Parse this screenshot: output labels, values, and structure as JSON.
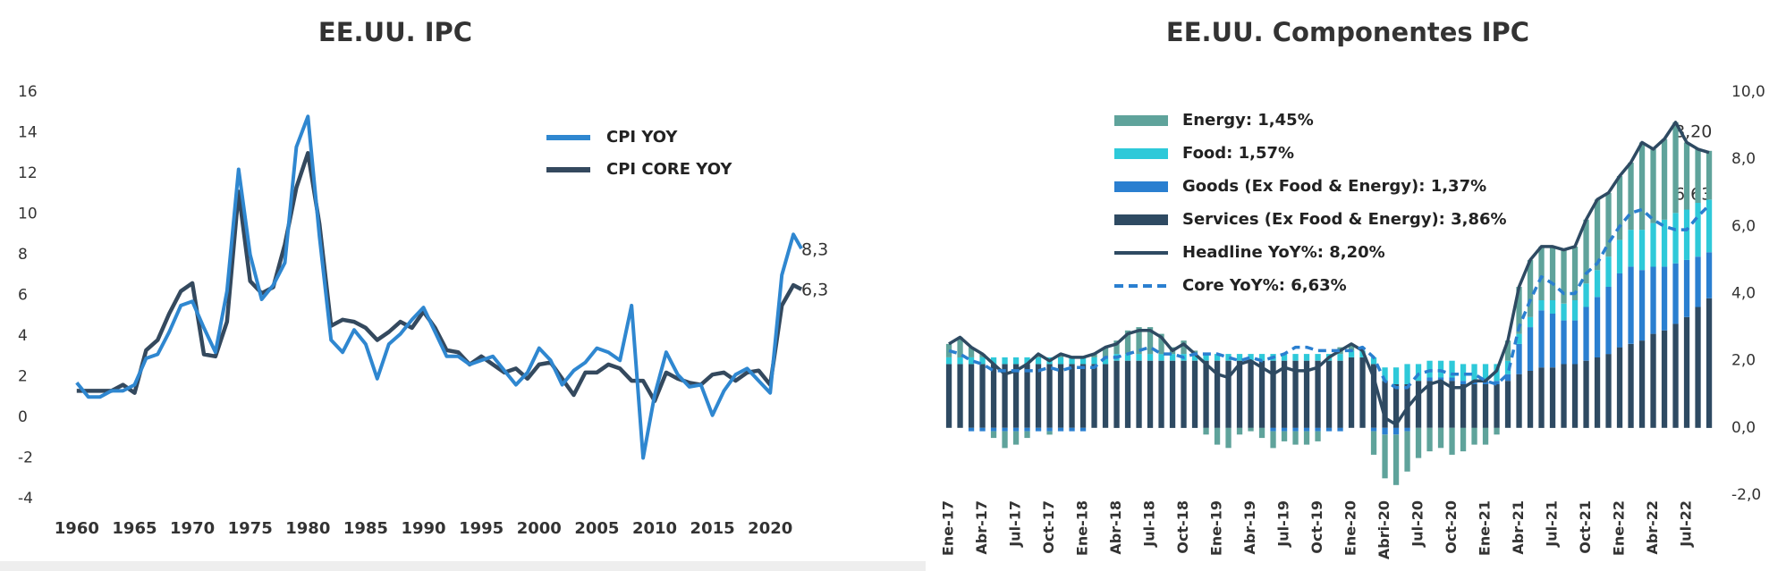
{
  "chart_data": [
    {
      "type": "line",
      "title": "EE.UU. IPC",
      "x": [
        1960,
        1961,
        1962,
        1963,
        1964,
        1965,
        1966,
        1967,
        1968,
        1969,
        1970,
        1971,
        1972,
        1973,
        1974,
        1975,
        1976,
        1977,
        1978,
        1979,
        1980,
        1981,
        1982,
        1983,
        1984,
        1985,
        1986,
        1987,
        1988,
        1989,
        1990,
        1991,
        1992,
        1993,
        1994,
        1995,
        1996,
        1997,
        1998,
        1999,
        2000,
        2001,
        2002,
        2003,
        2004,
        2005,
        2006,
        2007,
        2008,
        2009,
        2010,
        2011,
        2012,
        2013,
        2014,
        2015,
        2016,
        2017,
        2018,
        2019,
        2020,
        2021,
        2022,
        2022.7
      ],
      "series": [
        {
          "name": "CPI YOY",
          "color": "#2f87d0",
          "values": [
            1.7,
            1.0,
            1.0,
            1.3,
            1.3,
            1.6,
            2.9,
            3.1,
            4.2,
            5.5,
            5.7,
            4.4,
            3.2,
            6.2,
            12.2,
            8.0,
            5.8,
            6.5,
            7.6,
            13.3,
            14.8,
            8.9,
            3.8,
            3.2,
            4.3,
            3.6,
            1.9,
            3.6,
            4.1,
            4.8,
            5.4,
            4.2,
            3.0,
            3.0,
            2.6,
            2.8,
            3.0,
            2.3,
            1.6,
            2.2,
            3.4,
            2.8,
            1.6,
            2.3,
            2.7,
            3.4,
            3.2,
            2.8,
            5.5,
            -2.0,
            1.1,
            3.2,
            2.1,
            1.5,
            1.6,
            0.1,
            1.3,
            2.1,
            2.4,
            1.8,
            1.2,
            7.0,
            9.0,
            8.3
          ]
        },
        {
          "name": "CPI CORE YOY",
          "color": "#34495e",
          "values": [
            1.3,
            1.3,
            1.3,
            1.3,
            1.6,
            1.2,
            3.3,
            3.8,
            5.1,
            6.2,
            6.6,
            3.1,
            3.0,
            4.7,
            11.1,
            6.7,
            6.1,
            6.4,
            8.5,
            11.3,
            13.0,
            9.5,
            4.5,
            4.8,
            4.7,
            4.4,
            3.8,
            4.2,
            4.7,
            4.4,
            5.2,
            4.4,
            3.3,
            3.2,
            2.6,
            3.0,
            2.6,
            2.2,
            2.4,
            1.9,
            2.6,
            2.7,
            1.9,
            1.1,
            2.2,
            2.2,
            2.6,
            2.4,
            1.8,
            1.8,
            0.8,
            2.2,
            1.9,
            1.7,
            1.6,
            2.1,
            2.2,
            1.8,
            2.2,
            2.3,
            1.6,
            5.5,
            6.5,
            6.3
          ]
        }
      ],
      "xlim": [
        1958,
        2023
      ],
      "xticks": [
        1960,
        1965,
        1970,
        1975,
        1980,
        1985,
        1990,
        1995,
        2000,
        2005,
        2010,
        2015,
        2020
      ],
      "ylim": [
        -4,
        16
      ],
      "yticks": [
        -4,
        -2,
        0,
        2,
        4,
        6,
        8,
        10,
        12,
        14,
        16
      ],
      "annotations": [
        "8,3",
        "6,3"
      ]
    },
    {
      "type": "stacked_bar",
      "title": "EE.UU. Componentes IPC",
      "categories": [
        "Ene-17",
        null,
        null,
        "Abr-17",
        null,
        null,
        "Jul-17",
        null,
        null,
        "Oct-17",
        null,
        null,
        "Ene-18",
        null,
        null,
        "Abr-18",
        null,
        null,
        "Jul-18",
        null,
        null,
        "Oct-18",
        null,
        null,
        "Ene-19",
        null,
        null,
        "Abr-19",
        null,
        null,
        "Jul-19",
        null,
        null,
        "Oct-19",
        null,
        null,
        "Ene-20",
        null,
        null,
        "Abri-20",
        null,
        null,
        "Jul-20",
        null,
        null,
        "Oct-20",
        null,
        null,
        "Ene-21",
        null,
        null,
        "Abr-21",
        null,
        null,
        "Jul-21",
        null,
        null,
        "Oct-21",
        null,
        null,
        "Ene-22",
        null,
        null,
        "Abr-22",
        null,
        null,
        "Jul-22",
        null,
        null
      ],
      "series": [
        {
          "name": "Energy: 1,45%",
          "color": "#5fa39b",
          "values": [
            0.4,
            0.6,
            0.3,
            0.1,
            -0.2,
            -0.5,
            -0.4,
            -0.2,
            0.1,
            -0.1,
            0.1,
            0.0,
            0.0,
            0.1,
            0.3,
            0.4,
            0.7,
            0.8,
            0.8,
            0.6,
            0.2,
            0.4,
            0.1,
            -0.2,
            -0.5,
            -0.6,
            -0.2,
            -0.1,
            -0.3,
            -0.5,
            -0.3,
            -0.4,
            -0.4,
            -0.3,
            0.0,
            0.2,
            0.2,
            0.0,
            -0.7,
            -1.3,
            -1.5,
            -1.2,
            -0.9,
            -0.7,
            -0.6,
            -0.8,
            -0.7,
            -0.5,
            -0.5,
            -0.2,
            0.6,
            1.4,
            1.7,
            1.6,
            1.6,
            1.6,
            1.6,
            1.9,
            2.1,
            1.9,
            1.9,
            2.0,
            2.6,
            2.2,
            2.4,
            2.7,
            2.0,
            1.6,
            1.45
          ]
        },
        {
          "name": "Food: 1,57%",
          "color": "#2ec9d9",
          "values": [
            0.2,
            0.2,
            0.2,
            0.2,
            0.2,
            0.2,
            0.2,
            0.2,
            0.2,
            0.2,
            0.2,
            0.2,
            0.2,
            0.2,
            0.2,
            0.2,
            0.2,
            0.2,
            0.2,
            0.2,
            0.2,
            0.2,
            0.2,
            0.2,
            0.2,
            0.2,
            0.2,
            0.2,
            0.2,
            0.2,
            0.2,
            0.2,
            0.2,
            0.2,
            0.2,
            0.2,
            0.2,
            0.2,
            0.2,
            0.4,
            0.5,
            0.6,
            0.5,
            0.5,
            0.5,
            0.5,
            0.5,
            0.5,
            0.5,
            0.5,
            0.4,
            0.3,
            0.3,
            0.3,
            0.4,
            0.5,
            0.6,
            0.7,
            0.8,
            0.9,
            1.0,
            1.1,
            1.2,
            1.3,
            1.4,
            1.5,
            1.5,
            1.6,
            1.57
          ]
        },
        {
          "name": "Goods (Ex Food & Energy): 1,37%",
          "color": "#2a7fd0",
          "values": [
            0.0,
            0.0,
            -0.1,
            -0.1,
            -0.1,
            -0.1,
            -0.1,
            -0.1,
            -0.1,
            -0.1,
            -0.1,
            -0.1,
            -0.1,
            0.0,
            0.0,
            0.0,
            0.0,
            0.0,
            0.0,
            0.0,
            0.0,
            0.0,
            0.0,
            0.0,
            0.0,
            0.0,
            0.0,
            0.0,
            0.0,
            -0.1,
            -0.1,
            -0.1,
            -0.1,
            -0.1,
            -0.1,
            -0.1,
            0.0,
            0.0,
            -0.1,
            -0.2,
            -0.2,
            -0.1,
            0.0,
            0.1,
            0.1,
            0.1,
            0.1,
            0.1,
            0.1,
            0.1,
            0.2,
            0.9,
            1.3,
            1.7,
            1.6,
            1.3,
            1.3,
            1.6,
            1.8,
            2.0,
            2.2,
            2.3,
            2.1,
            2.0,
            1.9,
            1.8,
            1.7,
            1.5,
            1.37
          ]
        },
        {
          "name": "Services (Ex Food & Energy): 3,86%",
          "color": "#2e4a62",
          "values": [
            1.9,
            1.9,
            1.9,
            1.9,
            1.9,
            1.9,
            1.9,
            1.9,
            1.9,
            1.9,
            1.9,
            1.9,
            1.9,
            1.9,
            1.9,
            2.0,
            2.0,
            2.0,
            2.0,
            2.0,
            2.0,
            2.0,
            2.0,
            2.0,
            2.0,
            2.0,
            2.0,
            2.0,
            2.0,
            2.0,
            2.0,
            2.0,
            2.0,
            2.0,
            2.0,
            2.0,
            2.1,
            2.1,
            1.9,
            1.4,
            1.3,
            1.3,
            1.4,
            1.4,
            1.4,
            1.4,
            1.3,
            1.3,
            1.3,
            1.3,
            1.4,
            1.6,
            1.7,
            1.8,
            1.8,
            1.9,
            1.9,
            2.0,
            2.1,
            2.2,
            2.4,
            2.5,
            2.6,
            2.8,
            2.9,
            3.1,
            3.3,
            3.6,
            3.86
          ]
        },
        {
          "name": "Headline YoY%: 8,20%",
          "color": "#2e4a62",
          "type": "line",
          "values": [
            2.5,
            2.7,
            2.4,
            2.2,
            1.9,
            1.6,
            1.7,
            1.9,
            2.2,
            2.0,
            2.2,
            2.1,
            2.1,
            2.2,
            2.4,
            2.5,
            2.8,
            2.9,
            2.9,
            2.7,
            2.3,
            2.5,
            2.2,
            1.9,
            1.6,
            1.5,
            1.9,
            2.0,
            1.8,
            1.6,
            1.8,
            1.7,
            1.7,
            1.8,
            2.1,
            2.3,
            2.5,
            2.3,
            1.5,
            0.3,
            0.1,
            0.6,
            1.0,
            1.3,
            1.4,
            1.2,
            1.2,
            1.4,
            1.4,
            1.7,
            2.6,
            4.2,
            5.0,
            5.4,
            5.4,
            5.3,
            5.4,
            6.2,
            6.8,
            7.0,
            7.5,
            7.9,
            8.5,
            8.3,
            8.6,
            9.1,
            8.5,
            8.3,
            8.2
          ]
        },
        {
          "name": "Core YoY%: 6,63%",
          "color": "#2a7fd0",
          "type": "line",
          "dashed": true,
          "values": [
            2.3,
            2.2,
            2.0,
            1.9,
            1.7,
            1.7,
            1.7,
            1.7,
            1.7,
            1.8,
            1.7,
            1.8,
            1.8,
            1.8,
            2.1,
            2.1,
            2.2,
            2.3,
            2.4,
            2.2,
            2.2,
            2.1,
            2.2,
            2.2,
            2.2,
            2.1,
            2.0,
            2.1,
            2.0,
            2.1,
            2.2,
            2.4,
            2.4,
            2.3,
            2.3,
            2.3,
            2.3,
            2.4,
            2.1,
            1.4,
            1.2,
            1.2,
            1.6,
            1.7,
            1.7,
            1.6,
            1.6,
            1.6,
            1.4,
            1.3,
            1.6,
            3.0,
            3.8,
            4.5,
            4.3,
            4.0,
            4.0,
            4.6,
            4.9,
            5.5,
            6.0,
            6.4,
            6.5,
            6.2,
            6.0,
            5.9,
            5.9,
            6.3,
            6.63
          ]
        }
      ],
      "ylim": [
        -2,
        10
      ],
      "yticks": [
        {
          "value": -2,
          "label": "-2,0"
        },
        {
          "value": 0,
          "label": "0,0"
        },
        {
          "value": 2,
          "label": "2,0"
        },
        {
          "value": 4,
          "label": "4,0"
        },
        {
          "value": 6,
          "label": "6,0"
        },
        {
          "value": 8,
          "label": "8,0"
        },
        {
          "value": 10,
          "label": "10,0"
        }
      ],
      "annotations": [
        "8,20",
        "6,63"
      ]
    }
  ]
}
